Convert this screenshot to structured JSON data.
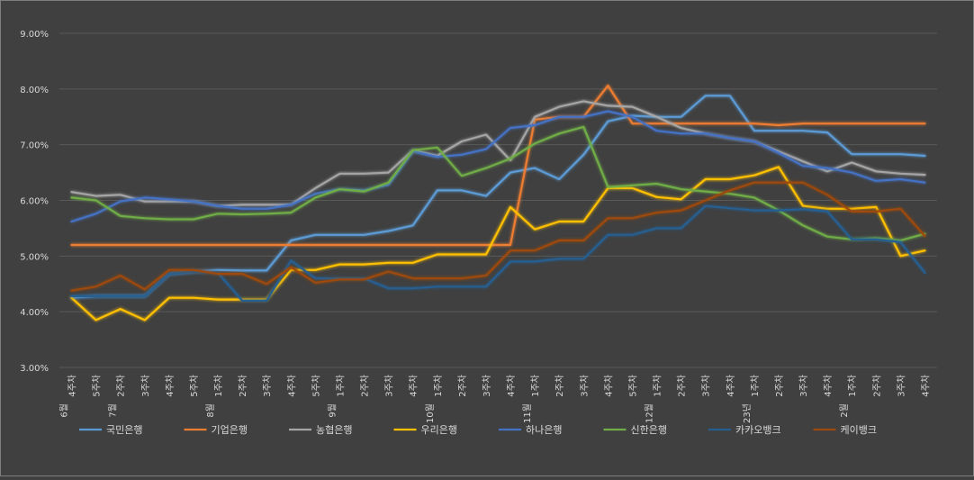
{
  "chart_data": {
    "type": "line",
    "x": [
      "6월 4주차",
      "5주차",
      "7월 2주차",
      "3주차",
      "4주차",
      "5주차",
      "8월 1주차",
      "2주차",
      "3주차",
      "4주차",
      "5주차",
      "9월 1주차",
      "2주차",
      "3주차",
      "4주차",
      "10월 1주차",
      "2주차",
      "3주차",
      "4주차",
      "11월 1주차",
      "2주차",
      "3주차",
      "4주차",
      "5주차",
      "12월 1주차",
      "2주차",
      "3주차",
      "4주차",
      "23년 1주차",
      "2주차",
      "3주차",
      "4주차",
      "2월 1주차",
      "2주차",
      "3주차",
      "4주차"
    ],
    "xtick_top": [
      "4주차",
      "5주차",
      "2주차",
      "3주차",
      "4주차",
      "5주차",
      "1주차",
      "2주차",
      "3주차",
      "4주차",
      "5주차",
      "1주차",
      "2주차",
      "3주차",
      "4주차",
      "1주차",
      "2주차",
      "3주차",
      "4주차",
      "1주차",
      "2주차",
      "3주차",
      "4주차",
      "5주차",
      "1주차",
      "2주차",
      "3주차",
      "4주차",
      "1주차",
      "2주차",
      "3주차",
      "4주차",
      "1주차",
      "2주차",
      "3주차",
      "4주차"
    ],
    "xtick_bottom": [
      "6월",
      "",
      "7월",
      "",
      "",
      "",
      "8월",
      "",
      "",
      "",
      "",
      "9월",
      "",
      "",
      "",
      "10월",
      "",
      "",
      "",
      "11월",
      "",
      "",
      "",
      "",
      "12월",
      "",
      "",
      "",
      "23년",
      "",
      "",
      "",
      "2월",
      "",
      "",
      ""
    ],
    "yticks": [
      "3.00%",
      "4.00%",
      "5.00%",
      "6.00%",
      "7.00%",
      "8.00%",
      "9.00%"
    ],
    "ylim": [
      3,
      9
    ],
    "grid": true,
    "legend_position": "bottom",
    "series": [
      {
        "name": "국민은행",
        "color": "#5b9bd5",
        "values": [
          4.25,
          4.28,
          4.28,
          4.28,
          4.68,
          4.72,
          4.75,
          4.74,
          4.74,
          5.28,
          5.38,
          5.38,
          5.38,
          5.45,
          5.55,
          6.18,
          6.18,
          6.08,
          6.5,
          6.58,
          6.38,
          6.82,
          7.42,
          7.52,
          7.5,
          7.5,
          7.88,
          7.88,
          7.25,
          7.25,
          7.25,
          7.22,
          6.83,
          6.83,
          6.83,
          6.8
        ]
      },
      {
        "name": "기업은행",
        "color": "#ed7d31",
        "values": [
          5.2,
          5.2,
          5.2,
          5.2,
          5.2,
          5.2,
          5.2,
          5.2,
          5.2,
          5.2,
          5.2,
          5.2,
          5.2,
          5.2,
          5.2,
          5.2,
          5.2,
          5.2,
          5.2,
          7.45,
          7.5,
          7.5,
          8.06,
          7.38,
          7.38,
          7.38,
          7.38,
          7.38,
          7.38,
          7.35,
          7.38,
          7.38,
          7.38,
          7.38,
          7.38,
          7.38
        ]
      },
      {
        "name": "농협은행",
        "color": "#a5a5a5",
        "values": [
          6.15,
          6.08,
          6.1,
          5.98,
          5.98,
          5.98,
          5.9,
          5.92,
          5.92,
          5.92,
          6.22,
          6.48,
          6.48,
          6.5,
          6.9,
          6.8,
          7.06,
          7.18,
          6.72,
          7.5,
          7.68,
          7.78,
          7.7,
          7.68,
          7.5,
          7.3,
          7.2,
          7.12,
          7.06,
          6.88,
          6.7,
          6.52,
          6.68,
          6.52,
          6.48,
          6.46
        ]
      },
      {
        "name": "우리은행",
        "color": "#ffc000",
        "values": [
          4.25,
          3.85,
          4.05,
          3.85,
          4.25,
          4.25,
          4.22,
          4.22,
          4.22,
          4.75,
          4.75,
          4.85,
          4.85,
          4.88,
          4.88,
          5.03,
          5.03,
          5.03,
          5.88,
          5.48,
          5.62,
          5.62,
          6.22,
          6.22,
          6.06,
          6.02,
          6.38,
          6.38,
          6.45,
          6.6,
          5.9,
          5.85,
          5.85,
          5.88,
          5.0,
          5.1
        ]
      },
      {
        "name": "하나은행",
        "color": "#4472c4",
        "values": [
          5.62,
          5.76,
          5.98,
          6.05,
          6.02,
          5.98,
          5.9,
          5.85,
          5.85,
          5.92,
          6.12,
          6.2,
          6.18,
          6.28,
          6.88,
          6.78,
          6.82,
          6.92,
          7.3,
          7.35,
          7.5,
          7.5,
          7.6,
          7.5,
          7.25,
          7.2,
          7.2,
          7.12,
          7.06,
          6.85,
          6.62,
          6.58,
          6.5,
          6.35,
          6.38,
          6.32
        ]
      },
      {
        "name": "신한은행",
        "color": "#70ad47",
        "values": [
          6.05,
          6.0,
          5.72,
          5.68,
          5.66,
          5.66,
          5.76,
          5.75,
          5.76,
          5.78,
          6.05,
          6.2,
          6.16,
          6.32,
          6.9,
          6.95,
          6.44,
          6.58,
          6.75,
          7.02,
          7.2,
          7.32,
          6.24,
          6.27,
          6.3,
          6.2,
          6.16,
          6.12,
          6.05,
          5.82,
          5.55,
          5.35,
          5.3,
          5.32,
          5.28,
          5.4
        ]
      },
      {
        "name": "카카오뱅크",
        "color": "#255e91",
        "values": [
          4.28,
          4.28,
          4.28,
          4.28,
          4.68,
          4.72,
          4.7,
          4.2,
          4.2,
          4.92,
          4.6,
          4.6,
          4.6,
          4.42,
          4.42,
          4.45,
          4.45,
          4.45,
          4.9,
          4.9,
          4.95,
          4.95,
          5.38,
          5.38,
          5.5,
          5.5,
          5.9,
          5.86,
          5.82,
          5.82,
          5.84,
          5.8,
          5.3,
          5.3,
          5.25,
          4.7
        ]
      },
      {
        "name": "케이뱅크",
        "color": "#9e480e",
        "values": [
          4.38,
          4.45,
          4.65,
          4.4,
          4.75,
          4.75,
          4.68,
          4.68,
          4.5,
          4.8,
          4.52,
          4.58,
          4.58,
          4.72,
          4.6,
          4.6,
          4.6,
          4.65,
          5.1,
          5.1,
          5.28,
          5.28,
          5.68,
          5.68,
          5.78,
          5.82,
          6.0,
          6.18,
          6.32,
          6.32,
          6.32,
          6.1,
          5.8,
          5.8,
          5.85,
          5.36
        ]
      }
    ]
  }
}
